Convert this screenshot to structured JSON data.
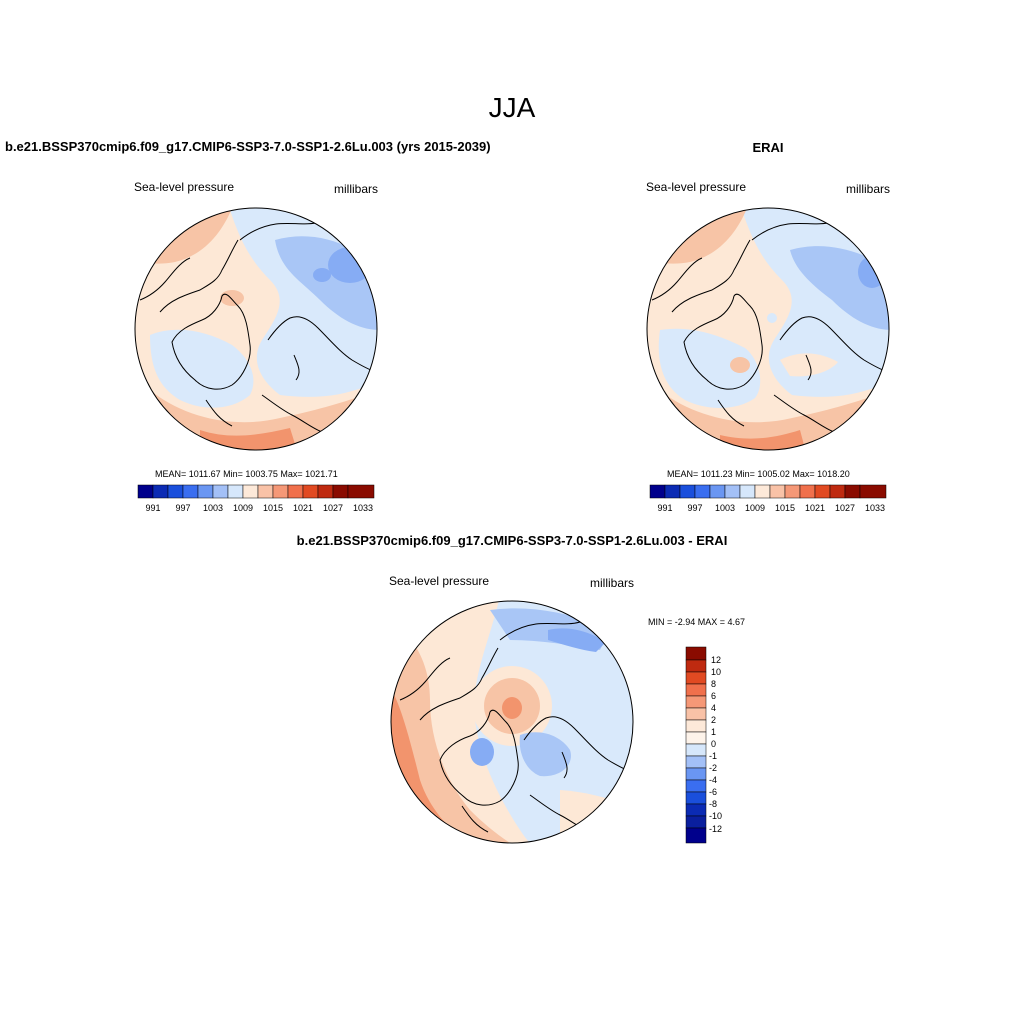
{
  "figure": {
    "title": "JJA"
  },
  "panels": [
    {
      "id": "model",
      "title": "b.e21.BSSP370cmip6.f09_g17.CMIP6-SSP3-7.0-SSP1-2.6Lu.003 (yrs 2015-2039)",
      "left_label": "Sea-level pressure",
      "right_label": "millibars",
      "stats": "MEAN= 1011.67  Min= 1003.75  Max= 1021.71",
      "colorbar_ticks": [
        "991",
        "997",
        "1003",
        "1009",
        "1015",
        "1021",
        "1027",
        "1033"
      ]
    },
    {
      "id": "obs",
      "title": "ERAI",
      "left_label": "Sea-level pressure",
      "right_label": "millibars",
      "stats": "MEAN= 1011.23  Min= 1005.02  Max= 1018.20",
      "colorbar_ticks": [
        "991",
        "997",
        "1003",
        "1009",
        "1015",
        "1021",
        "1027",
        "1033"
      ]
    },
    {
      "id": "diff",
      "title": "b.e21.BSSP370cmip6.f09_g17.CMIP6-SSP3-7.0-SSP1-2.6Lu.003 - ERAI",
      "left_label": "Sea-level pressure",
      "right_label": "millibars",
      "stats": "MIN =  -2.94 MAX =   4.67",
      "colorbar_ticks": [
        "12",
        "10",
        "8",
        "6",
        "4",
        "2",
        "1",
        "0",
        "-1",
        "-2",
        "-4",
        "-6",
        "-8",
        "-10",
        "-12"
      ]
    }
  ],
  "colors": {
    "levels_hex": [
      "#00008c",
      "#0b2bb4",
      "#1a4fdc",
      "#3a6ef0",
      "#6a96f2",
      "#a3c0f7",
      "#d6e7fb",
      "#fde9d9",
      "#f9c2a7",
      "#f59877",
      "#f0704c",
      "#e14a22",
      "#bf2a10",
      "#8a0b00"
    ],
    "ocean_light_blue": "#d9e9fb",
    "mid_blue": "#a9c6f6",
    "light_peach": "#fde8d6",
    "peach": "#f7c4a6",
    "orange": "#f2946d"
  }
}
